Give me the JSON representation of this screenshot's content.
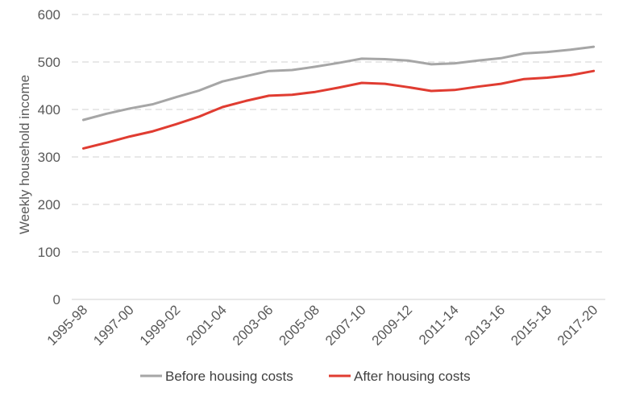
{
  "chart_data": {
    "type": "line",
    "title": "",
    "xlabel": "",
    "ylabel": "Weekly household income",
    "ylim": [
      0,
      600
    ],
    "yticks": [
      0,
      100,
      200,
      300,
      400,
      500,
      600
    ],
    "grid": true,
    "legend_position": "bottom",
    "categories": [
      "1995-98",
      "1996-99",
      "1997-00",
      "1998-01",
      "1999-02",
      "2000-03",
      "2001-04",
      "2002-05",
      "2003-06",
      "2004-07",
      "2005-08",
      "2006-09",
      "2007-10",
      "2008-11",
      "2009-12",
      "2010-13",
      "2011-14",
      "2012-15",
      "2013-16",
      "2014-17",
      "2015-18",
      "2016-19",
      "2017-20"
    ],
    "tick_labels": [
      "1995-98",
      "1997-00",
      "1999-02",
      "2001-04",
      "2003-06",
      "2005-08",
      "2007-10",
      "2009-12",
      "2011-14",
      "2013-16",
      "2015-18",
      "2017-20"
    ],
    "series": [
      {
        "name": "Before housing costs",
        "color": "#a6a6a6",
        "values": [
          378,
          391,
          402,
          411,
          426,
          440,
          459,
          470,
          481,
          483,
          490,
          498,
          507,
          506,
          503,
          495,
          497,
          503,
          508,
          518,
          521,
          526,
          532
        ]
      },
      {
        "name": "After housing costs",
        "color": "#e03c31",
        "values": [
          318,
          330,
          343,
          354,
          369,
          385,
          405,
          418,
          429,
          431,
          437,
          446,
          456,
          454,
          447,
          439,
          441,
          448,
          454,
          464,
          467,
          472,
          481
        ]
      }
    ]
  }
}
